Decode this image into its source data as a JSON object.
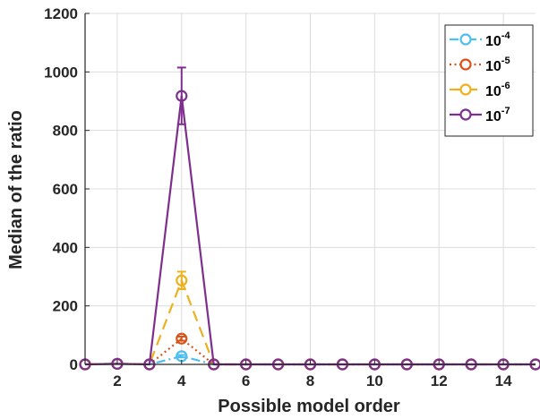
{
  "chart_data": {
    "type": "line",
    "xlabel": "Possible model order",
    "ylabel": "Median of the ratio",
    "xlim": [
      1,
      15
    ],
    "ylim": [
      0,
      1200
    ],
    "x_ticks": [
      2,
      4,
      6,
      8,
      10,
      12,
      14
    ],
    "y_ticks": [
      0,
      200,
      400,
      600,
      800,
      1000,
      1200
    ],
    "grid": true,
    "legend_position": "top-right",
    "x": [
      1,
      2,
      3,
      4,
      5,
      6,
      7,
      8,
      9,
      10,
      11,
      12,
      13,
      14,
      15
    ],
    "series": [
      {
        "name_base": "10",
        "name_exp": "-4",
        "color": "#4DBEEE",
        "line_style": "dash-dot",
        "marker": "circle",
        "values": [
          0,
          2,
          0,
          28,
          0,
          0,
          0,
          0,
          0,
          0,
          0,
          0,
          0,
          0,
          0
        ],
        "error": [
          0,
          0,
          0,
          4,
          0,
          0,
          0,
          0,
          0,
          0,
          0,
          0,
          0,
          0,
          0
        ]
      },
      {
        "name_base": "10",
        "name_exp": "-5",
        "color": "#D95319",
        "line_style": "dotted",
        "marker": "circle",
        "values": [
          0,
          2,
          0,
          88,
          0,
          0,
          0,
          0,
          0,
          0,
          0,
          0,
          0,
          0,
          0
        ],
        "error": [
          0,
          0,
          0,
          7,
          0,
          0,
          0,
          0,
          0,
          0,
          0,
          0,
          0,
          0,
          0
        ]
      },
      {
        "name_base": "10",
        "name_exp": "-6",
        "color": "#EDB120",
        "line_style": "dashed",
        "marker": "circle",
        "values": [
          0,
          2,
          0,
          287,
          0,
          0,
          0,
          0,
          0,
          0,
          0,
          0,
          0,
          0,
          0
        ],
        "error": [
          0,
          0,
          0,
          30,
          0,
          0,
          0,
          0,
          0,
          0,
          0,
          0,
          0,
          0,
          0
        ]
      },
      {
        "name_base": "10",
        "name_exp": "-7",
        "color": "#7E2F8E",
        "line_style": "solid",
        "marker": "circle",
        "values": [
          0,
          2,
          0,
          918,
          0,
          0,
          0,
          0,
          0,
          0,
          0,
          0,
          0,
          0,
          0
        ],
        "error": [
          0,
          0,
          0,
          97,
          0,
          0,
          0,
          0,
          0,
          0,
          0,
          0,
          0,
          0,
          0
        ]
      }
    ]
  }
}
